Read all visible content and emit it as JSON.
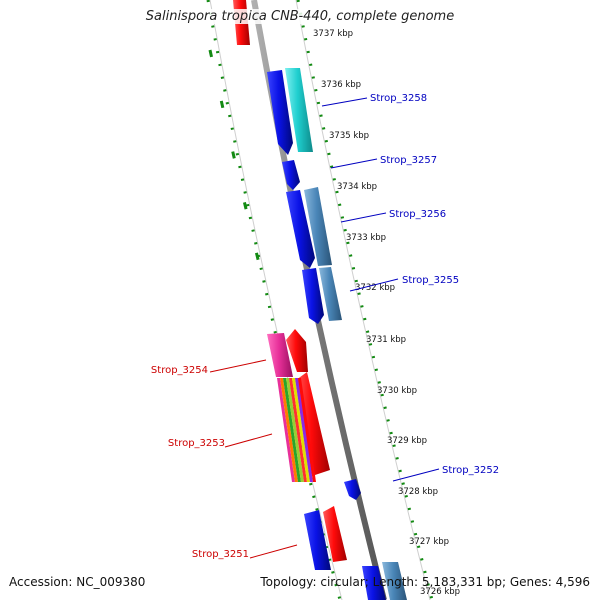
{
  "title": "Salinispora tropica CNB-440, complete genome",
  "footer": {
    "accession": "Accession: NC_009380",
    "topology": "Topology: circular; Length: 5,183,331 bp; Genes: 4,596"
  },
  "colors": {
    "forward_gene": "#0a12e6",
    "reverse_gene": "#ff0a0a",
    "cyan_gene": "#1fcfcf",
    "steel_gene": "#4a86b8",
    "magenta_gene": "#e8309a",
    "tick_green": "#138a13",
    "right_label": "#0000c0",
    "left_label": "#cc0000"
  },
  "kbp_ticks": [
    "3737 kbp",
    "3736 kbp",
    "3735 kbp",
    "3734 kbp",
    "3733 kbp",
    "3732 kbp",
    "3731 kbp",
    "3730 kbp",
    "3729 kbp",
    "3728 kbp",
    "3727 kbp",
    "3726 kbp"
  ],
  "right_genes": [
    "Strop_3258",
    "Strop_3257",
    "Strop_3256",
    "Strop_3255",
    "Strop_3252"
  ],
  "left_genes": [
    "Strop_3254",
    "Strop_3253",
    "Strop_3251"
  ]
}
